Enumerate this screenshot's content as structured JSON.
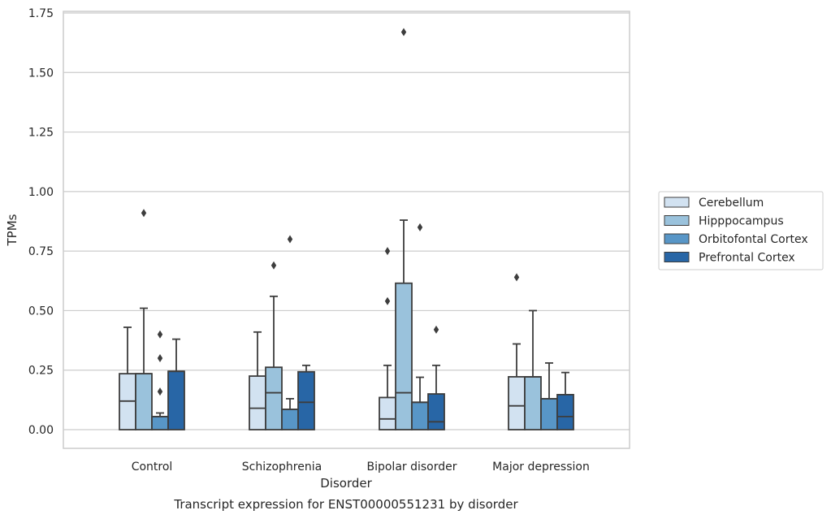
{
  "chart_data": {
    "type": "box",
    "title": "",
    "caption": "Transcript expression for ENST00000551231 by disorder",
    "xlabel": "Disorder",
    "ylabel": "TPMs",
    "ylim": [
      -0.08,
      1.76
    ],
    "yticks": [
      "0.00",
      "0.25",
      "0.50",
      "0.75",
      "1.00",
      "1.25",
      "1.50",
      "1.75"
    ],
    "ytick_values": [
      0,
      0.25,
      0.5,
      0.75,
      1.0,
      1.25,
      1.5,
      1.75
    ],
    "grid": "horizontal",
    "legend_position": "right",
    "categories": [
      "Control",
      "Schizophrenia",
      "Bipolar disorder",
      "Major depression"
    ],
    "series": [
      {
        "name": "Cerebellum",
        "color": "#d2e2f1",
        "boxes": [
          {
            "q1": 0,
            "median": 0.12,
            "q3": 0.235,
            "whisker_low": 0,
            "whisker_high": 0.43,
            "outliers": []
          },
          {
            "q1": 0,
            "median": 0.09,
            "q3": 0.225,
            "whisker_low": 0,
            "whisker_high": 0.41,
            "outliers": []
          },
          {
            "q1": 0,
            "median": 0.045,
            "q3": 0.135,
            "whisker_low": 0,
            "whisker_high": 0.27,
            "outliers": [
              0.54,
              0.75
            ]
          },
          {
            "q1": 0,
            "median": 0.1,
            "q3": 0.222,
            "whisker_low": 0,
            "whisker_high": 0.36,
            "outliers": [
              0.64
            ]
          }
        ]
      },
      {
        "name": "Hipppocampus",
        "color": "#9ac2dc",
        "boxes": [
          {
            "q1": 0,
            "median": 0.235,
            "q3": 0.235,
            "whisker_low": 0,
            "whisker_high": 0.51,
            "outliers": [
              0.91
            ]
          },
          {
            "q1": 0,
            "median": 0.155,
            "q3": 0.262,
            "whisker_low": 0,
            "whisker_high": 0.56,
            "outliers": [
              0.69
            ]
          },
          {
            "q1": 0,
            "median": 0.155,
            "q3": 0.615,
            "whisker_low": 0,
            "whisker_high": 0.88,
            "outliers": [
              1.67
            ]
          },
          {
            "q1": 0,
            "median": 0.222,
            "q3": 0.222,
            "whisker_low": 0,
            "whisker_high": 0.5,
            "outliers": []
          }
        ]
      },
      {
        "name": "Orbitofontal Cortex",
        "color": "#5896c7",
        "boxes": [
          {
            "q1": 0,
            "median": 0.055,
            "q3": 0.055,
            "whisker_low": 0,
            "whisker_high": 0.07,
            "outliers": [
              0.16,
              0.3,
              0.4
            ]
          },
          {
            "q1": 0,
            "median": 0.085,
            "q3": 0.085,
            "whisker_low": 0,
            "whisker_high": 0.13,
            "outliers": [
              0.8
            ]
          },
          {
            "q1": 0,
            "median": 0.115,
            "q3": 0.115,
            "whisker_low": 0,
            "whisker_high": 0.22,
            "outliers": [
              0.85
            ]
          },
          {
            "q1": 0,
            "median": 0.13,
            "q3": 0.13,
            "whisker_low": 0,
            "whisker_high": 0.28,
            "outliers": []
          }
        ]
      },
      {
        "name": "Prefrontal Cortex",
        "color": "#2866a6",
        "boxes": [
          {
            "q1": 0,
            "median": 0.245,
            "q3": 0.245,
            "whisker_low": 0,
            "whisker_high": 0.38,
            "outliers": []
          },
          {
            "q1": 0,
            "median": 0.115,
            "q3": 0.243,
            "whisker_low": 0,
            "whisker_high": 0.27,
            "outliers": []
          },
          {
            "q1": 0,
            "median": 0.033,
            "q3": 0.15,
            "whisker_low": 0,
            "whisker_high": 0.27,
            "outliers": [
              0.42
            ]
          },
          {
            "q1": 0,
            "median": 0.055,
            "q3": 0.147,
            "whisker_low": 0,
            "whisker_high": 0.24,
            "outliers": []
          }
        ]
      }
    ]
  }
}
